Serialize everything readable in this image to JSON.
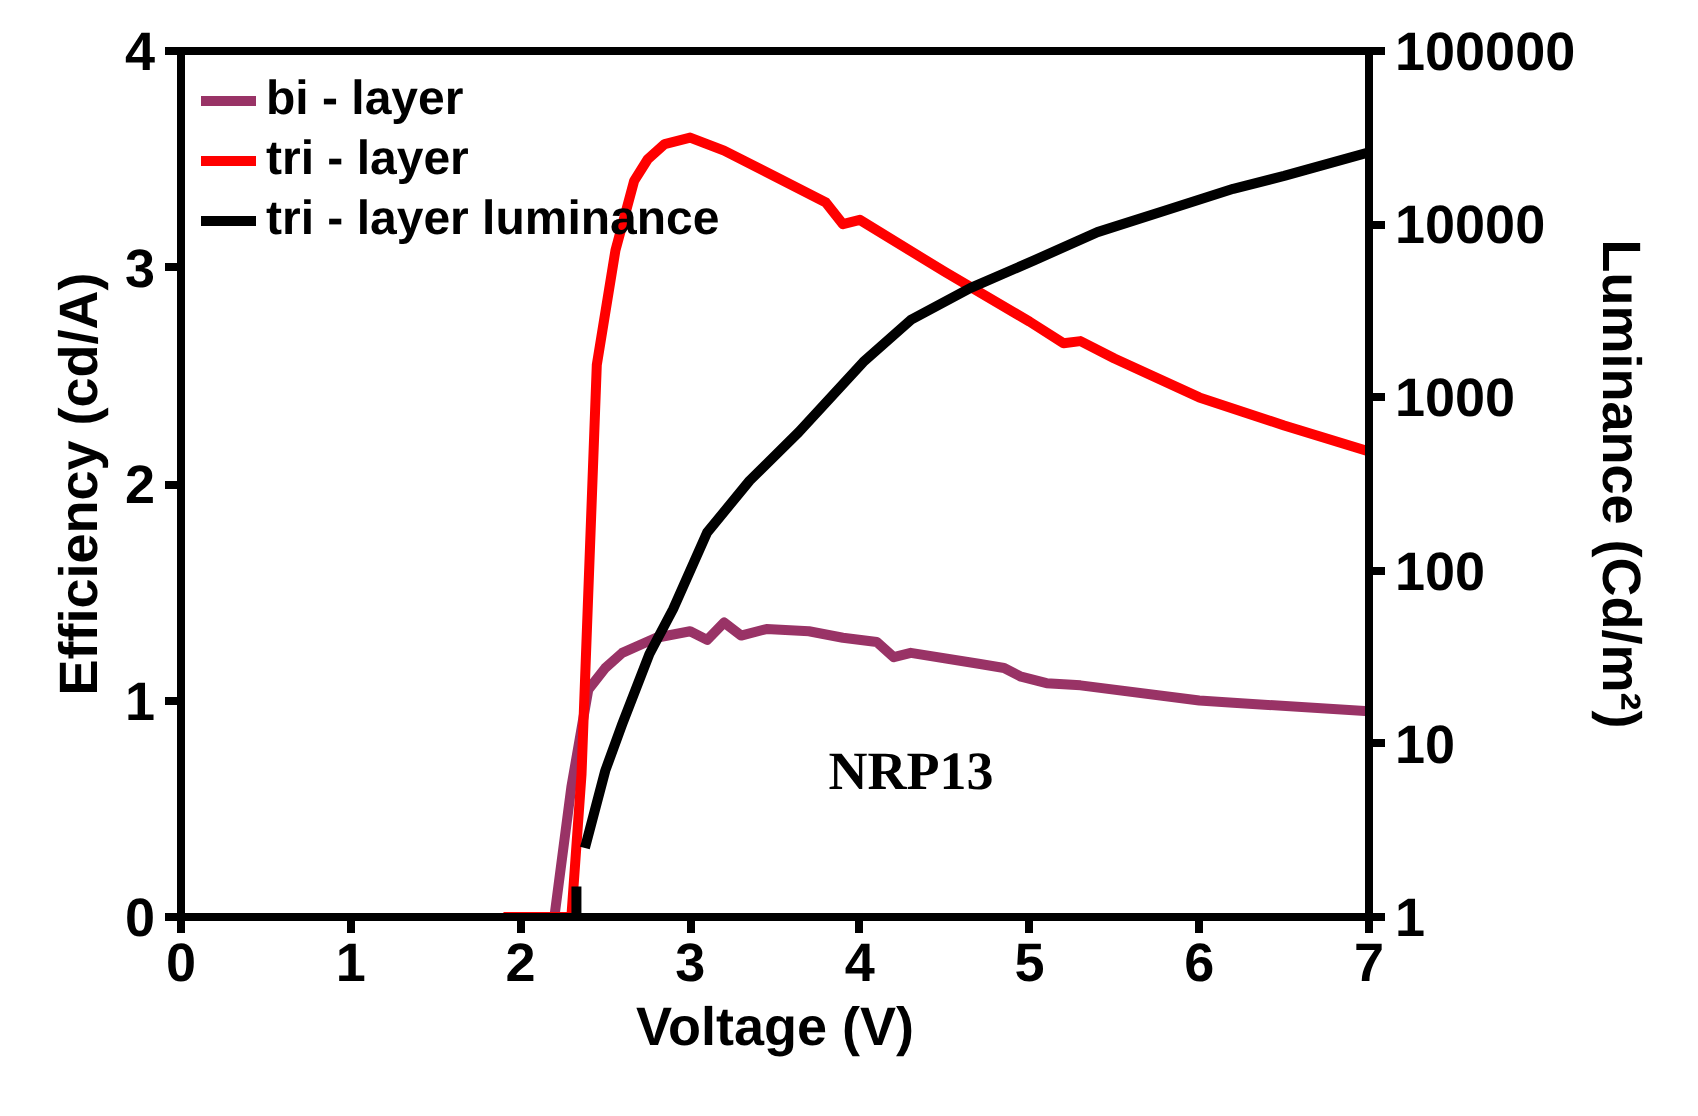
{
  "chart_data": {
    "type": "line",
    "xlabel": "Voltage (V)",
    "ylabel": "Efficiency (cd/A)",
    "y2label": "Luminance (Cd/m²)",
    "xlim": [
      0,
      7
    ],
    "xticks": [
      0,
      1,
      2,
      3,
      4,
      5,
      6,
      7
    ],
    "ylim": [
      0,
      4
    ],
    "yticks": [
      0,
      1,
      2,
      3,
      4
    ],
    "y2lim": [
      1,
      100000
    ],
    "y2ticks": [
      1,
      10,
      100,
      1000,
      10000,
      100000
    ],
    "log": "y2",
    "grid": false,
    "legend": "top left",
    "marker": "none",
    "line_style": "solid",
    "series": [
      {
        "name": "bi - layer",
        "color": "#993366",
        "x": [
          2.2,
          2.3,
          2.4,
          2.5,
          2.6,
          2.8,
          3.0,
          3.1,
          3.2,
          3.3,
          3.45,
          3.7,
          3.9,
          4.1,
          4.2,
          4.3,
          4.7,
          4.85,
          4.95,
          5.1,
          5.3,
          6.0,
          6.2,
          7.0
        ],
        "values": [
          0,
          0.6,
          1.05,
          1.15,
          1.22,
          1.29,
          1.32,
          1.28,
          1.36,
          1.3,
          1.33,
          1.32,
          1.29,
          1.27,
          1.2,
          1.22,
          1.17,
          1.15,
          1.11,
          1.08,
          1.07,
          1.0,
          0.99,
          0.95
        ]
      },
      {
        "name": "tri - layer",
        "color": "#ff0000",
        "x": [
          1.9,
          2.3,
          2.36,
          2.45,
          2.56,
          2.67,
          2.75,
          2.85,
          3.0,
          3.2,
          3.5,
          3.8,
          3.9,
          4.0,
          4.5,
          5.0,
          5.2,
          5.3,
          5.5,
          6.0,
          6.5,
          7.0
        ],
        "values": [
          0,
          0,
          0.66,
          2.55,
          3.08,
          3.4,
          3.5,
          3.57,
          3.6,
          3.54,
          3.42,
          3.3,
          3.2,
          3.22,
          2.98,
          2.75,
          2.65,
          2.66,
          2.58,
          2.4,
          2.27,
          2.15
        ]
      },
      {
        "name": "tri - layer luminance",
        "color": "#000000",
        "axis": "y2",
        "x": [
          2.33,
          2.33,
          2.36,
          2.38,
          2.5,
          2.6,
          2.76,
          2.9,
          3.1,
          3.35,
          3.64,
          4.02,
          4.3,
          4.65,
          5.03,
          5.4,
          5.8,
          6.2,
          6.5,
          7.0
        ],
        "values": [
          1,
          1.5,
          null,
          2.5,
          7,
          13,
          33,
          60,
          166,
          330,
          630,
          1600,
          2800,
          4270,
          6200,
          9000,
          12000,
          16000,
          19000,
          26000
        ]
      }
    ],
    "annotations": [
      "NRP13"
    ]
  }
}
